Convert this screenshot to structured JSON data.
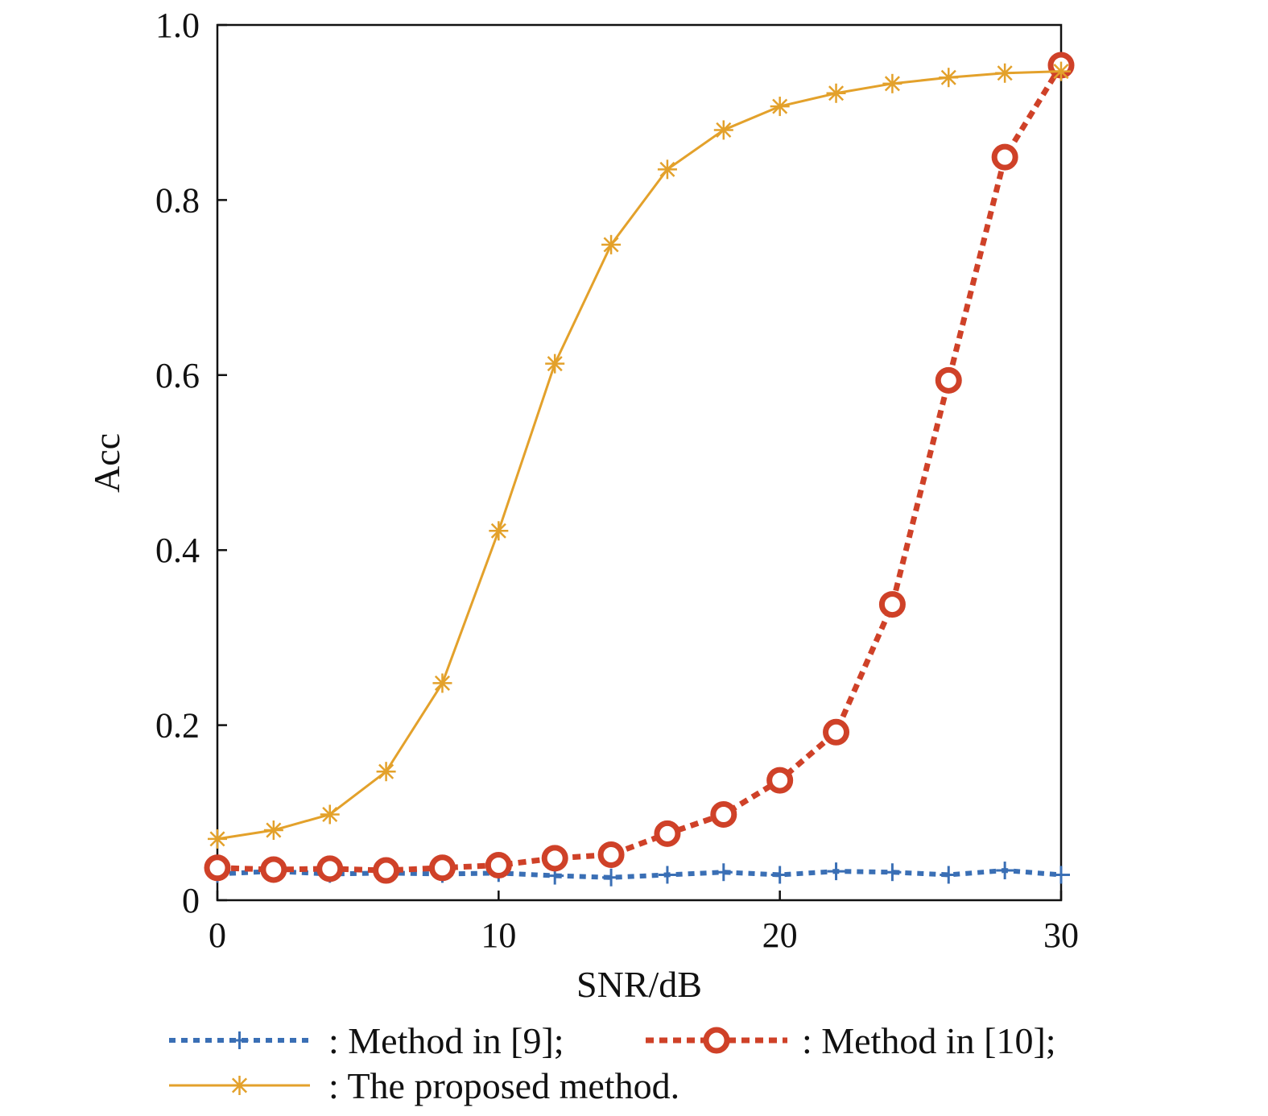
{
  "chart_data": {
    "type": "line",
    "xlabel": "SNR/dB",
    "ylabel": "Acc",
    "xlim": [
      0,
      30
    ],
    "ylim": [
      0,
      1.0
    ],
    "x_ticks": [
      0,
      10,
      20,
      30
    ],
    "y_ticks": [
      0,
      0.2,
      0.4,
      0.6,
      0.8,
      1.0
    ],
    "x_tick_labels": [
      "0",
      "10",
      "20",
      "30"
    ],
    "y_tick_labels": [
      "0",
      "0.2",
      "0.4",
      "0.6",
      "0.8",
      "1.0"
    ],
    "grid": false,
    "legend_position": "bottom",
    "x": [
      0,
      2,
      4,
      6,
      8,
      10,
      12,
      14,
      16,
      18,
      20,
      22,
      24,
      26,
      28,
      30
    ],
    "series": [
      {
        "name": "Method in [9]",
        "legend_label": ": Method in [9];",
        "color": "#3a6fb5",
        "line_style": "dotted",
        "marker": "plus",
        "values": [
          0.03,
          0.033,
          0.03,
          0.031,
          0.03,
          0.031,
          0.028,
          0.026,
          0.029,
          0.032,
          0.029,
          0.033,
          0.032,
          0.029,
          0.034,
          0.029
        ]
      },
      {
        "name": "Method in [10]",
        "legend_label": ": Method in [10];",
        "color": "#cf4128",
        "line_style": "dotted",
        "marker": "circle",
        "values": [
          0.037,
          0.035,
          0.036,
          0.034,
          0.037,
          0.04,
          0.048,
          0.052,
          0.076,
          0.098,
          0.137,
          0.192,
          0.338,
          0.594,
          0.849,
          0.954
        ]
      },
      {
        "name": "The proposed method",
        "legend_label": ": The proposed method.",
        "color": "#e3a12b",
        "line_style": "solid",
        "marker": "asterisk",
        "values": [
          0.07,
          0.08,
          0.098,
          0.147,
          0.248,
          0.422,
          0.613,
          0.749,
          0.835,
          0.88,
          0.907,
          0.922,
          0.933,
          0.94,
          0.945,
          0.947
        ]
      }
    ]
  }
}
